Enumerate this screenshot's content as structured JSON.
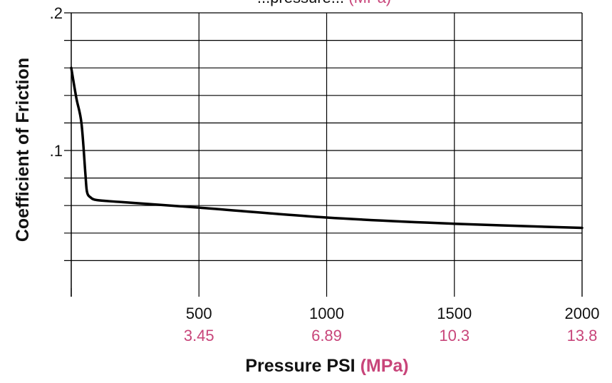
{
  "colors": {
    "text": "#111111",
    "accent": "#c8457a",
    "line": "#000000",
    "grid": "#000000"
  },
  "chart_data": {
    "type": "line",
    "title_partial": {
      "black": "...pressure...",
      "accent": "(MPa)"
    },
    "xlabel": {
      "main": "Pressure PSI",
      "accent": "(MPa)"
    },
    "ylabel": "Coefficient of Friction",
    "xlim": [
      0,
      2000
    ],
    "ylim": [
      0,
      0.2
    ],
    "grid": true,
    "x_ticks": [
      {
        "value": 500,
        "label": "500",
        "alt": "3.45"
      },
      {
        "value": 1000,
        "label": "1000",
        "alt": "6.89"
      },
      {
        "value": 1500,
        "label": "1500",
        "alt": "10.3"
      },
      {
        "value": 2000,
        "label": "2000",
        "alt": "13.8"
      }
    ],
    "y_ticks": [
      {
        "value": 0.2,
        "label": ".2"
      },
      {
        "value": 0.1,
        "label": ".1"
      }
    ],
    "series": [
      {
        "x": [
          0,
          20,
          40,
          55,
          60,
          65,
          75,
          100,
          200,
          500,
          1000,
          1500,
          2000
        ],
        "y": [
          0.16,
          0.138,
          0.12,
          0.084,
          0.072,
          0.068,
          0.066,
          0.064,
          0.0625,
          0.0585,
          0.0513,
          0.0468,
          0.0438
        ]
      }
    ]
  }
}
